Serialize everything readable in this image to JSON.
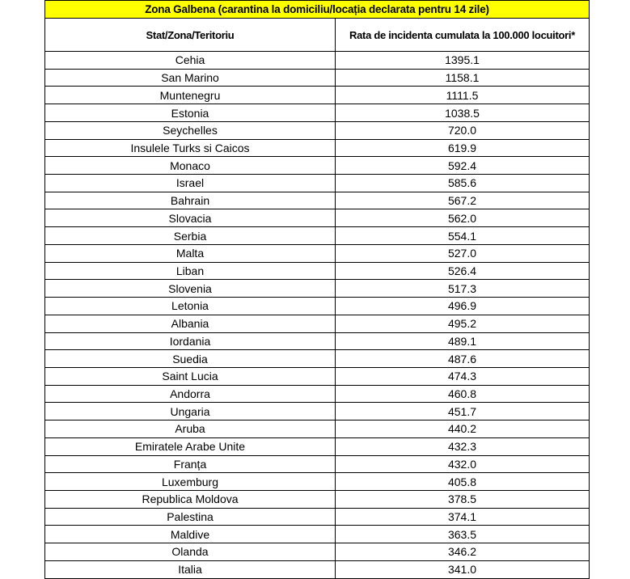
{
  "title": "Zona Galbena (carantina la domiciliu/locația declarata pentru 14 zile)",
  "columns": {
    "state": "Stat/Zona/Teritoriu",
    "rate": "Rata de incidenta cumulata la 100.000 locuitori*"
  },
  "colors": {
    "title_bg": "#FFFF00",
    "border": "#000000",
    "text": "#000000"
  },
  "rows": [
    {
      "state": "Cehia",
      "rate": "1395.1"
    },
    {
      "state": "San Marino",
      "rate": "1158.1"
    },
    {
      "state": "Muntenegru",
      "rate": "1111.5"
    },
    {
      "state": "Estonia",
      "rate": "1038.5"
    },
    {
      "state": "Seychelles",
      "rate": "720.0"
    },
    {
      "state": "Insulele Turks si Caicos",
      "rate": "619.9"
    },
    {
      "state": "Monaco",
      "rate": "592.4"
    },
    {
      "state": "Israel",
      "rate": "585.6"
    },
    {
      "state": "Bahrain",
      "rate": "567.2"
    },
    {
      "state": "Slovacia",
      "rate": "562.0"
    },
    {
      "state": "Serbia",
      "rate": "554.1"
    },
    {
      "state": "Malta",
      "rate": "527.0"
    },
    {
      "state": "Liban",
      "rate": "526.4"
    },
    {
      "state": "Slovenia",
      "rate": "517.3"
    },
    {
      "state": "Letonia",
      "rate": "496.9"
    },
    {
      "state": "Albania",
      "rate": "495.2"
    },
    {
      "state": "Iordania",
      "rate": "489.1"
    },
    {
      "state": "Suedia",
      "rate": "487.6"
    },
    {
      "state": "Saint Lucia",
      "rate": "474.3"
    },
    {
      "state": "Andorra",
      "rate": "460.8"
    },
    {
      "state": "Ungaria",
      "rate": "451.7"
    },
    {
      "state": "Aruba",
      "rate": "440.2"
    },
    {
      "state": "Emiratele Arabe Unite",
      "rate": "432.3"
    },
    {
      "state": "Franța",
      "rate": "432.0"
    },
    {
      "state": "Luxemburg",
      "rate": "405.8"
    },
    {
      "state": "Republica Moldova",
      "rate": "378.5"
    },
    {
      "state": "Palestina",
      "rate": "374.1"
    },
    {
      "state": "Maldive",
      "rate": "363.5"
    },
    {
      "state": "Olanda",
      "rate": "346.2"
    },
    {
      "state": "Italia",
      "rate": "341.0"
    }
  ]
}
